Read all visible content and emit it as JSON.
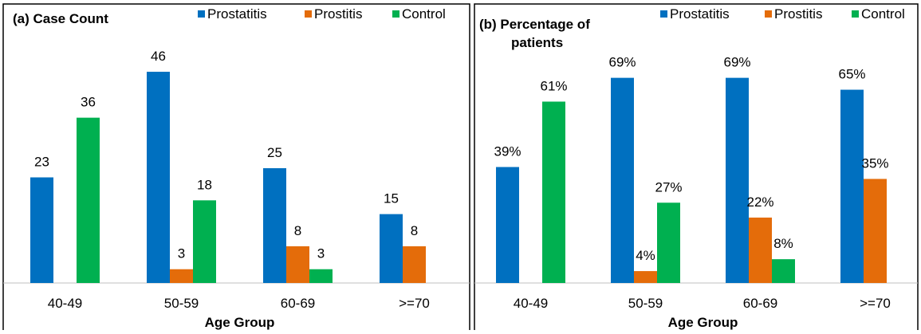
{
  "chart_data": [
    {
      "type": "bar",
      "title": "(a) Case Count",
      "xlabel": "Age Group",
      "ylabel": "",
      "categories": [
        "40-49",
        "50-59",
        "60-69",
        ">=70"
      ],
      "series": [
        {
          "name": "Prostatitis",
          "color": "#0070C0",
          "values": [
            23,
            46,
            25,
            15
          ],
          "labels": [
            "23",
            "46",
            "25",
            "15"
          ]
        },
        {
          "name": "Prostitis",
          "color": "#E46C0A",
          "values": [
            null,
            3,
            8,
            8
          ],
          "labels": [
            "",
            "3",
            "8",
            "8"
          ]
        },
        {
          "name": "Control",
          "color": "#00B050",
          "values": [
            36,
            18,
            3,
            null
          ],
          "labels": [
            "36",
            "18",
            "3",
            ""
          ]
        }
      ],
      "legend": "top-right",
      "grid": false,
      "ylim": [
        0,
        50
      ]
    },
    {
      "type": "bar",
      "title": "(b) Percentage of patients",
      "title_lines": [
        "(b) Percentage of",
        "patients"
      ],
      "xlabel": "Age Group",
      "ylabel": "",
      "categories": [
        "40-49",
        "50-59",
        "60-69",
        ">=70"
      ],
      "series": [
        {
          "name": "Prostatitis",
          "color": "#0070C0",
          "values": [
            39,
            69,
            69,
            65
          ],
          "labels": [
            "39%",
            "69%",
            "69%",
            "65%"
          ]
        },
        {
          "name": "Prostitis",
          "color": "#E46C0A",
          "values": [
            null,
            4,
            22,
            35
          ],
          "labels": [
            "",
            "4%",
            "22%",
            "35%"
          ]
        },
        {
          "name": "Control",
          "color": "#00B050",
          "values": [
            61,
            27,
            8,
            null
          ],
          "labels": [
            "61%",
            "27%",
            "8%",
            ""
          ]
        }
      ],
      "legend": "top-right",
      "grid": false,
      "ylim": [
        0,
        75
      ]
    }
  ]
}
